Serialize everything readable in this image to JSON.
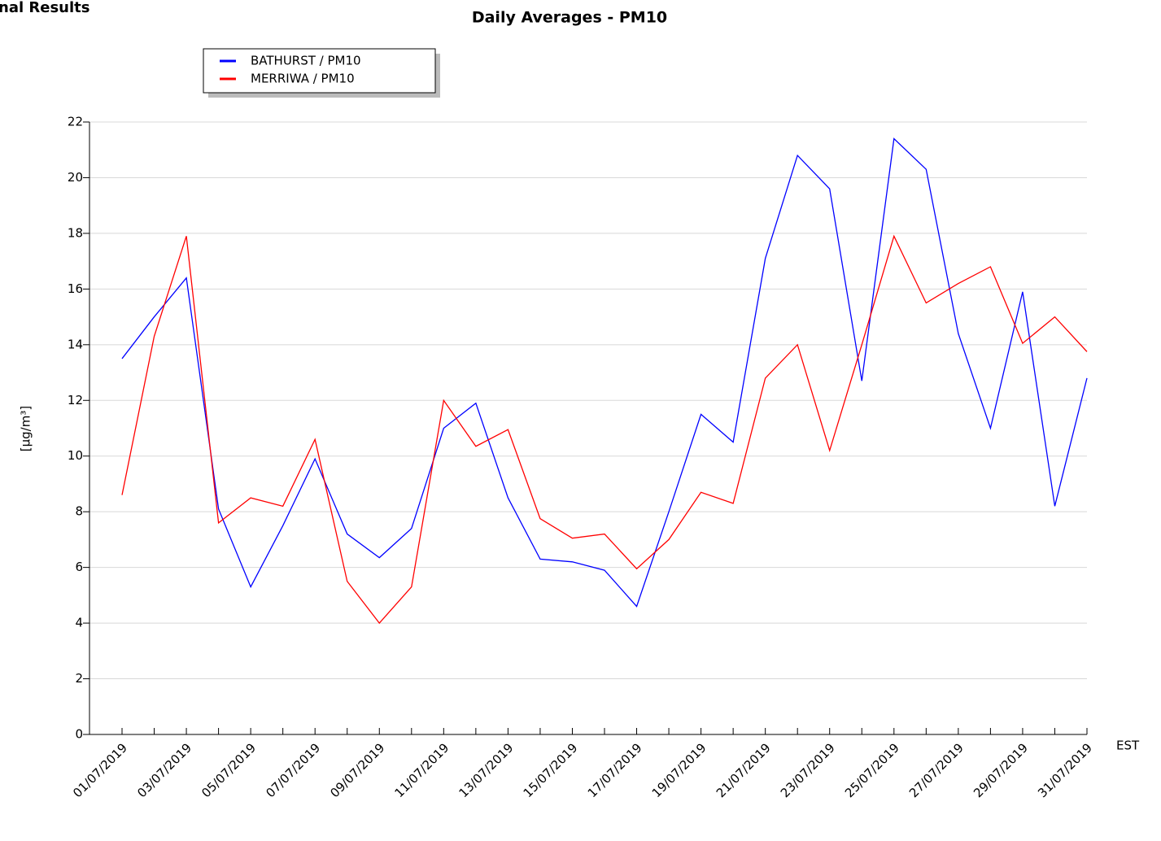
{
  "chart_data": {
    "type": "line",
    "page_heading": "nal Results",
    "title": "Daily Averages - PM10",
    "y_label": "[µg/m³]",
    "x_label": "EST",
    "categories": [
      "01/07/2019",
      null,
      "03/07/2019",
      null,
      "05/07/2019",
      null,
      "07/07/2019",
      null,
      "09/07/2019",
      null,
      "11/07/2019",
      null,
      "13/07/2019",
      null,
      "15/07/2019",
      null,
      "17/07/2019",
      null,
      "19/07/2019",
      null,
      "21/07/2019",
      null,
      "23/07/2019",
      null,
      "25/07/2019",
      null,
      "27/07/2019",
      null,
      "29/07/2019",
      null,
      "31/07/2019"
    ],
    "series": [
      {
        "name": "BATHURST / PM10",
        "color": "#0000ff",
        "values": [
          13.5,
          15.0,
          16.4,
          8.1,
          5.3,
          7.5,
          9.9,
          7.2,
          6.35,
          7.4,
          11.0,
          11.9,
          8.5,
          6.3,
          6.2,
          5.9,
          4.6,
          8.0,
          11.5,
          10.5,
          17.1,
          20.8,
          19.6,
          12.7,
          21.4,
          20.3,
          14.4,
          11.0,
          15.9,
          8.2,
          12.8
        ]
      },
      {
        "name": "MERRIWA / PM10",
        "color": "#ff0000",
        "values": [
          8.6,
          14.3,
          17.9,
          7.6,
          8.5,
          8.2,
          10.6,
          5.5,
          4.0,
          5.3,
          12.0,
          10.35,
          10.95,
          7.75,
          7.05,
          7.2,
          5.95,
          7.0,
          8.7,
          8.3,
          12.8,
          14.0,
          10.2,
          14.0,
          17.9,
          15.5,
          16.2,
          16.8,
          14.05,
          15.0,
          13.75
        ]
      }
    ],
    "ylim": [
      0,
      22
    ],
    "yticks": [
      0,
      2,
      4,
      6,
      8,
      10,
      12,
      14,
      16,
      18,
      20,
      22
    ],
    "grid": true,
    "legend": "top-left"
  }
}
